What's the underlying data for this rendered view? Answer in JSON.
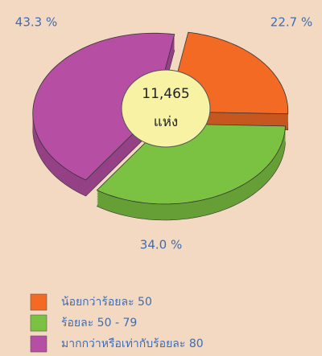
{
  "chart_data": {
    "type": "pie",
    "categories": [
      "น้อยกว่าร้อยละ 50",
      "ร้อยละ 50 - 79",
      "มากกว่าหรือเท่ากับร้อยละ 80"
    ],
    "values": [
      22.7,
      34.0,
      43.3
    ],
    "value_labels": [
      "22.7 %",
      "34.0 %",
      "43.3 %"
    ],
    "colors": [
      "#f26a24",
      "#7cc242",
      "#b64fa4"
    ],
    "annotations": [
      "11,465",
      "แห่ง"
    ]
  }
}
